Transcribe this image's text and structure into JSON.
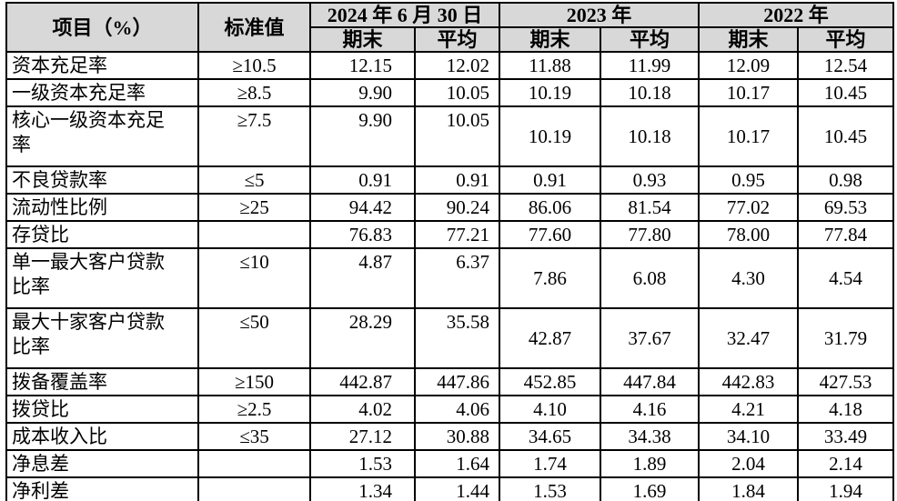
{
  "table": {
    "colors": {
      "header_bg": "#d8d8d8",
      "border": "#000000",
      "text": "#000000",
      "page_bg": "#ffffff"
    },
    "header": {
      "item": "项目（%）",
      "standard": "标准值",
      "groups": [
        {
          "label": "2024 年 6 月 30 日",
          "cols": [
            "期末",
            "平均"
          ]
        },
        {
          "label": "2023 年",
          "cols": [
            "期末",
            "平均"
          ]
        },
        {
          "label": "2022 年",
          "cols": [
            "期末",
            "平均"
          ]
        }
      ]
    },
    "rows": [
      {
        "item": "资本充足率",
        "standard": "≥10.5",
        "values": [
          "12.15",
          "12.02",
          "11.88",
          "11.99",
          "12.09",
          "12.54"
        ],
        "tall": false
      },
      {
        "item": "一级资本充足率",
        "standard": "≥8.5",
        "values": [
          "9.90",
          "10.05",
          "10.19",
          "10.18",
          "10.17",
          "10.45"
        ],
        "tall": false
      },
      {
        "item": "核心一级资本充足\n率",
        "standard": "≥7.5",
        "values": [
          "9.90",
          "10.05",
          "10.19",
          "10.18",
          "10.17",
          "10.45"
        ],
        "tall": true
      },
      {
        "item": "不良贷款率",
        "standard": "≤5",
        "values": [
          "0.91",
          "0.91",
          "0.91",
          "0.93",
          "0.95",
          "0.98"
        ],
        "tall": false
      },
      {
        "item": "流动性比例",
        "standard": "≥25",
        "values": [
          "94.42",
          "90.24",
          "86.06",
          "81.54",
          "77.02",
          "69.53"
        ],
        "tall": false
      },
      {
        "item": "存贷比",
        "standard": "",
        "values": [
          "76.83",
          "77.21",
          "77.60",
          "77.80",
          "78.00",
          "77.84"
        ],
        "tall": false
      },
      {
        "item": "单一最大客户贷款\n比率",
        "standard": "≤10",
        "values": [
          "4.87",
          "6.37",
          "7.86",
          "6.08",
          "4.30",
          "4.54"
        ],
        "tall": true
      },
      {
        "item": "最大十家客户贷款\n比率",
        "standard": "≤50",
        "values": [
          "28.29",
          "35.58",
          "42.87",
          "37.67",
          "32.47",
          "31.79"
        ],
        "tall": true
      },
      {
        "item": "拨备覆盖率",
        "standard": "≥150",
        "values": [
          "442.87",
          "447.86",
          "452.85",
          "447.84",
          "442.83",
          "427.53"
        ],
        "tall": false
      },
      {
        "item": "拨贷比",
        "standard": "≥2.5",
        "values": [
          "4.02",
          "4.06",
          "4.10",
          "4.16",
          "4.21",
          "4.18"
        ],
        "tall": false
      },
      {
        "item": "成本收入比",
        "standard": "≤35",
        "values": [
          "27.12",
          "30.88",
          "34.65",
          "34.38",
          "34.10",
          "33.49"
        ],
        "tall": false
      },
      {
        "item": "净息差",
        "standard": "",
        "values": [
          "1.53",
          "1.64",
          "1.74",
          "1.89",
          "2.04",
          "2.14"
        ],
        "tall": false
      },
      {
        "item": "净利差",
        "standard": "",
        "values": [
          "1.34",
          "1.44",
          "1.53",
          "1.69",
          "1.84",
          "1.94"
        ],
        "tall": false
      }
    ]
  }
}
